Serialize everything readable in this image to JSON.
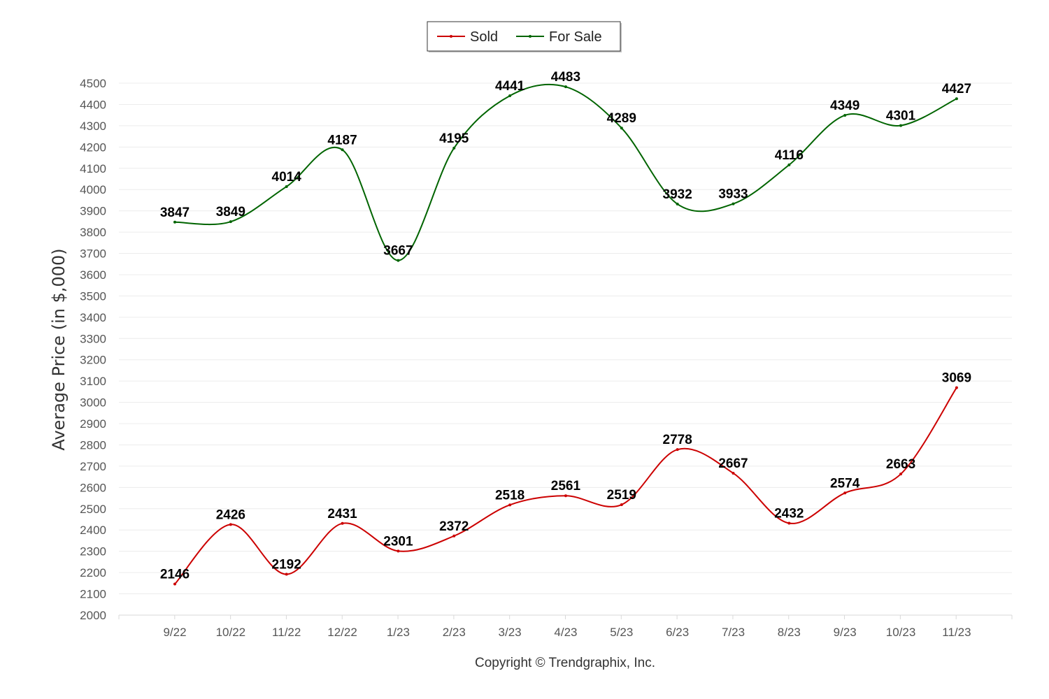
{
  "chart_data": {
    "type": "line",
    "categories": [
      "9/22",
      "10/22",
      "11/22",
      "12/22",
      "1/23",
      "2/23",
      "3/23",
      "4/23",
      "5/23",
      "6/23",
      "7/23",
      "8/23",
      "9/23",
      "10/23",
      "11/23"
    ],
    "series": [
      {
        "name": "Sold",
        "color": "#cc0000",
        "values": [
          2146,
          2426,
          2192,
          2431,
          2301,
          2372,
          2518,
          2561,
          2519,
          2778,
          2667,
          2432,
          2574,
          2663,
          3069
        ]
      },
      {
        "name": "For Sale",
        "color": "#006400",
        "values": [
          3847,
          3849,
          4014,
          4187,
          3667,
          4195,
          4441,
          4483,
          4289,
          3932,
          3933,
          4116,
          4349,
          4301,
          4427
        ]
      }
    ],
    "ylabel": "Average Price (in $,000)",
    "xlabel": "",
    "ylim": [
      2000,
      4500
    ],
    "ytick_step": 100,
    "grid": true,
    "legend_position": "top-center",
    "smooth": true,
    "data_labels": true
  },
  "footer": {
    "copyright": "Copyright © Trendgraphix, Inc."
  }
}
